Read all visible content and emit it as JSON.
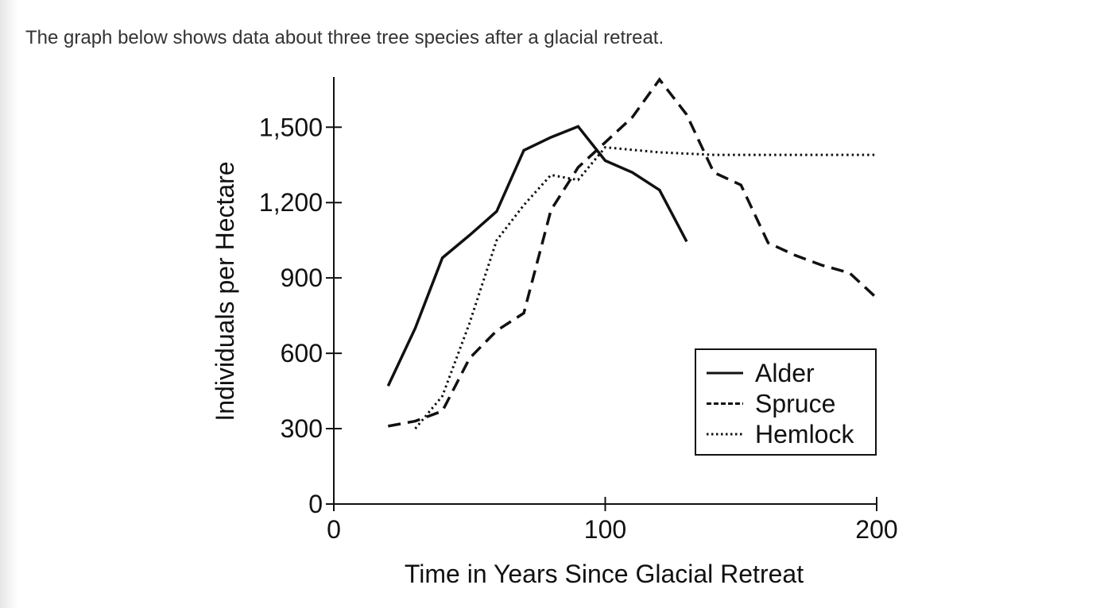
{
  "intro": "The graph below shows data about three tree species after a glacial retreat.",
  "chart_data": {
    "type": "line",
    "xlabel": "Time in Years Since Glacial Retreat",
    "ylabel": "Individuals per Hectare",
    "xlim": [
      0,
      200
    ],
    "ylim": [
      0,
      1700
    ],
    "xticks": [
      0,
      100,
      200
    ],
    "yticks": [
      0,
      300,
      600,
      900,
      {
        "value": 1200,
        "label": "1,200"
      },
      {
        "value": 1500,
        "label": "1,500"
      }
    ],
    "legend": "lower right",
    "series": [
      {
        "name": "Alder",
        "color": "#111111",
        "style": "solid",
        "x": [
          20,
          30,
          40,
          50,
          60,
          70,
          80,
          90,
          100,
          110,
          120,
          130
        ],
        "values": [
          470,
          700,
          980,
          1070,
          1165,
          1408,
          1460,
          1503,
          1367,
          1320,
          1250,
          1045
        ]
      },
      {
        "name": "Spruce",
        "color": "#111111",
        "style": "dashed",
        "x": [
          20,
          30,
          40,
          50,
          60,
          70,
          80,
          90,
          100,
          110,
          120,
          130,
          140,
          150,
          160,
          170,
          180,
          190,
          200
        ],
        "values": [
          310,
          330,
          370,
          580,
          690,
          760,
          1170,
          1340,
          1440,
          1540,
          1690,
          1550,
          1320,
          1270,
          1040,
          990,
          950,
          920,
          820
        ]
      },
      {
        "name": "Hemlock",
        "color": "#111111",
        "style": "dotted",
        "x": [
          30,
          40,
          50,
          60,
          70,
          80,
          90,
          100,
          110,
          120,
          130,
          140,
          150,
          160,
          170,
          180,
          190,
          200
        ],
        "values": [
          300,
          430,
          720,
          1050,
          1190,
          1310,
          1290,
          1420,
          1410,
          1400,
          1395,
          1390,
          1390,
          1390,
          1390,
          1390,
          1390,
          1390
        ]
      }
    ]
  }
}
